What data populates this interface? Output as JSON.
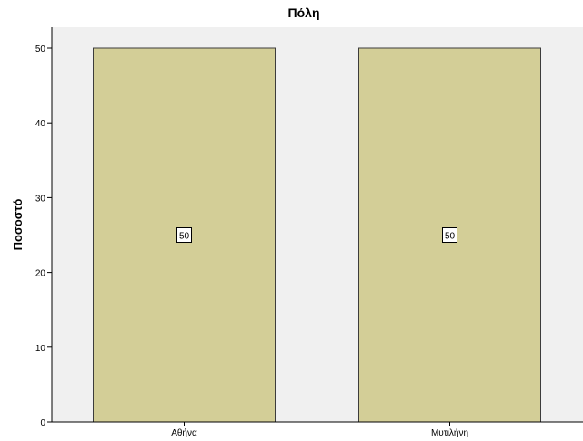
{
  "chart_data": {
    "type": "bar",
    "title": "Πόλη",
    "xlabel": "",
    "ylabel": "Ποσοστό",
    "categories": [
      "Αθήνα",
      "Μυτιλήνη"
    ],
    "values": [
      50,
      50
    ],
    "data_labels": [
      "50",
      "50"
    ],
    "ylim": [
      0,
      50
    ],
    "yticks": [
      0,
      10,
      20,
      30,
      40,
      50
    ],
    "ytick_labels": [
      "0",
      "10",
      "20",
      "30",
      "40",
      "50"
    ],
    "grid": false,
    "legend": "none",
    "colors": {
      "plot_background": "#f0f0f0",
      "bar_fill": "#d3ce97",
      "bar_stroke": "#3c3c3c",
      "axis": "#000000",
      "label_box": "#ffffff"
    }
  }
}
